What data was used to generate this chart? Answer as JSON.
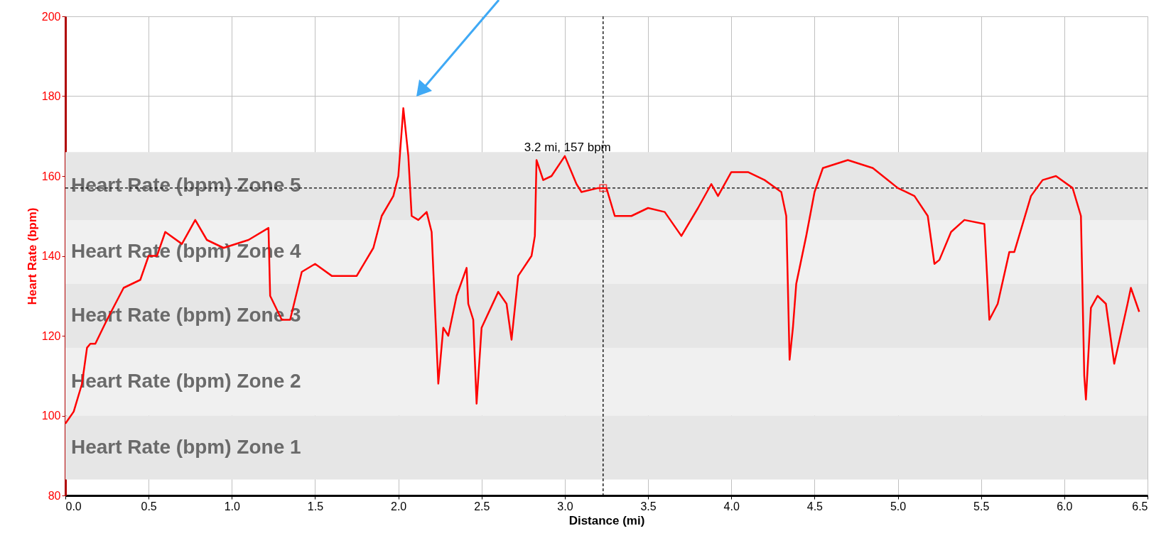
{
  "chart_data": {
    "type": "line",
    "xlabel": "Distance (mi)",
    "ylabel": "Heart Rate (bpm)",
    "xlim": [
      0,
      6.5
    ],
    "ylim": [
      80,
      200
    ],
    "xticks": [
      {
        "value": 0,
        "label": "0.0"
      },
      0.5,
      {
        "value": 1,
        "label": "1.0"
      },
      1.5,
      {
        "value": 2,
        "label": "2.0"
      },
      2.5,
      {
        "value": 3,
        "label": "3.0"
      },
      3.5,
      {
        "value": 4,
        "label": "4.0"
      },
      4.5,
      {
        "value": 5,
        "label": "5.0"
      },
      5.5,
      {
        "value": 6,
        "label": "6.0"
      },
      6.5
    ],
    "yticks": [
      80,
      100,
      120,
      140,
      160,
      180,
      200
    ],
    "grid": true,
    "marker": "none",
    "line_style": "solid",
    "series": [
      {
        "color": "#ff0000",
        "x": [
          0,
          0.05,
          0.1,
          0.13,
          0.15,
          0.18,
          0.25,
          0.35,
          0.45,
          0.5,
          0.55,
          0.6,
          0.7,
          0.78,
          0.85,
          0.95,
          1.1,
          1.22,
          1.23,
          1.3,
          1.35,
          1.42,
          1.5,
          1.6,
          1.75,
          1.85,
          1.9,
          1.97,
          2.0,
          2.03,
          2.06,
          2.08,
          2.12,
          2.17,
          2.2,
          2.24,
          2.27,
          2.3,
          2.35,
          2.41,
          2.42,
          2.45,
          2.47,
          2.5,
          2.6,
          2.65,
          2.68,
          2.72,
          2.8,
          2.82,
          2.83,
          2.87,
          2.92,
          3.0,
          3.07,
          3.1,
          3.2,
          3.25,
          3.3,
          3.4,
          3.5,
          3.6,
          3.7,
          3.8,
          3.88,
          3.92,
          4.0,
          4.1,
          4.2,
          4.3,
          4.33,
          4.35,
          4.37,
          4.39,
          4.45,
          4.5,
          4.55,
          4.7,
          4.85,
          5.0,
          5.1,
          5.18,
          5.22,
          5.25,
          5.32,
          5.4,
          5.52,
          5.55,
          5.6,
          5.67,
          5.7,
          5.8,
          5.87,
          5.95,
          6.05,
          6.1,
          6.12,
          6.13,
          6.16,
          6.2,
          6.25,
          6.3,
          6.38,
          6.4,
          6.45
        ],
        "values": [
          98,
          101,
          108,
          117,
          118,
          118,
          124,
          132,
          134,
          140,
          140,
          146,
          143,
          149,
          144,
          142,
          144,
          147,
          130,
          124,
          124,
          136,
          138,
          135,
          135,
          142,
          150,
          155,
          160,
          177,
          165,
          150,
          149,
          151,
          146,
          108,
          122,
          120,
          130,
          137,
          128,
          124,
          103,
          122,
          131,
          128,
          119,
          135,
          140,
          145,
          164,
          159,
          160,
          165,
          158,
          156,
          157,
          157,
          150,
          150,
          152,
          151,
          145,
          152,
          158,
          155,
          161,
          161,
          159,
          156,
          150,
          114,
          122,
          133,
          145,
          156,
          162,
          164,
          162,
          157,
          155,
          150,
          138,
          139,
          146,
          149,
          148,
          124,
          128,
          141,
          141,
          155,
          159,
          160,
          157,
          150,
          110,
          104,
          127,
          130,
          128,
          113,
          128,
          132,
          126
        ]
      }
    ],
    "bands": [
      {
        "axis": "y",
        "from": 149,
        "to": 166,
        "label": "Heart Rate (bpm) Zone 5",
        "color": "#e6e6e6"
      },
      {
        "axis": "y",
        "from": 133,
        "to": 149,
        "label": "Heart Rate (bpm) Zone 4",
        "color": "#f0f0f0"
      },
      {
        "axis": "y",
        "from": 117,
        "to": 133,
        "label": "Heart Rate (bpm) Zone 3",
        "color": "#e6e6e6"
      },
      {
        "axis": "y",
        "from": 100,
        "to": 117,
        "label": "Heart Rate (bpm) Zone 2",
        "color": "#f0f0f0"
      },
      {
        "axis": "y",
        "from": 84,
        "to": 100,
        "label": "Heart Rate (bpm) Zone 1",
        "color": "#e6e6e6"
      }
    ],
    "ref_lines": [
      {
        "axis": "x",
        "value": 3.23,
        "color": "#000000",
        "line_style": "dashed"
      },
      {
        "axis": "y",
        "value": 157,
        "color": "#000000",
        "line_style": "dashed"
      }
    ],
    "annotations": [
      {
        "text": "3.2 mi, 157 bpm",
        "x": 3.23,
        "y": 157
      }
    ]
  }
}
